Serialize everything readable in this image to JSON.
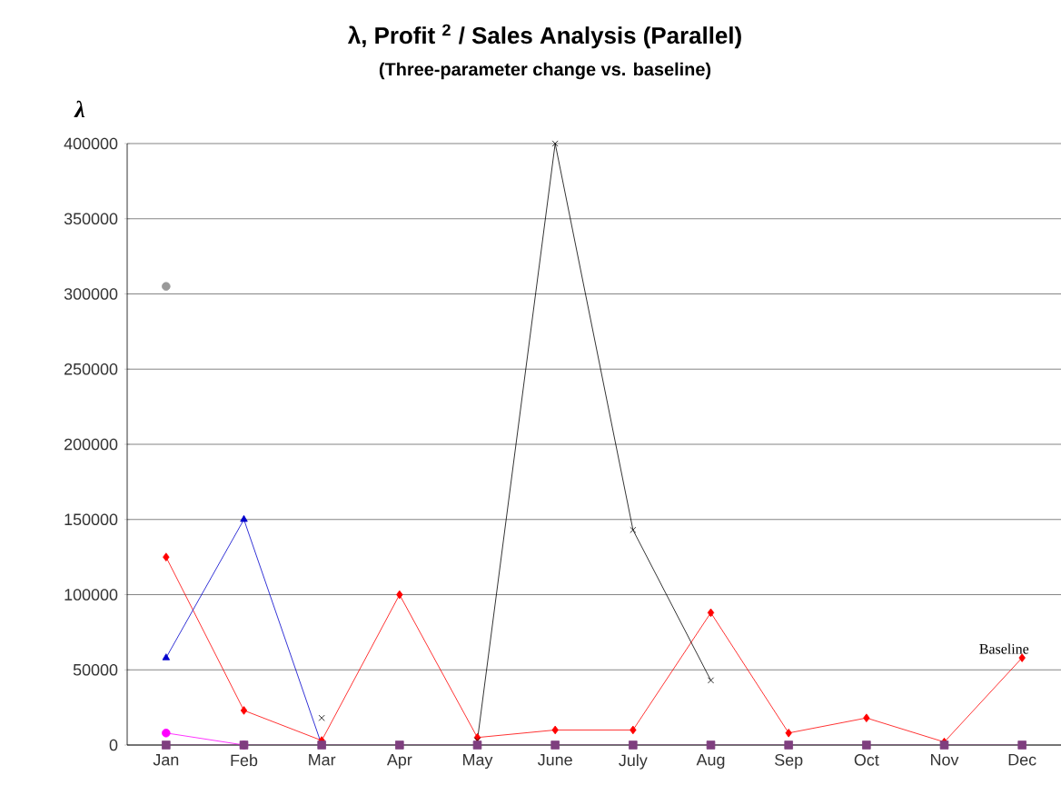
{
  "chart_data": {
    "type": "line",
    "title": "λ, Profit $^{2}$ / Sales Analysis (Parallel)",
    "subtitle": "(Three-parameter change vs. baseline)",
    "ylabel": "λ",
    "categories": [
      "Jan",
      "Feb",
      "Mar",
      "Apr",
      "May",
      "June",
      "July",
      "Aug",
      "Sep",
      "Oct",
      "Nov",
      "Dec"
    ],
    "ylim": [
      0,
      400000
    ],
    "yticks": [
      0,
      50000,
      100000,
      150000,
      200000,
      250000,
      300000,
      350000,
      400000
    ],
    "grid": "y",
    "series": [
      {
        "name": "Baseline",
        "color": "#ff0000",
        "marker": "diamond",
        "values": [
          125000,
          23000,
          3000,
          100000,
          5000,
          10000,
          10000,
          88000,
          8000,
          18000,
          2000,
          58000
        ]
      },
      {
        "color": "#0000cc",
        "marker": "triangle",
        "values": [
          58000,
          150000,
          0,
          null,
          null,
          null,
          null,
          null,
          null,
          null,
          null,
          null
        ]
      },
      {
        "color": "#000000",
        "marker": "cross",
        "values": [
          null,
          null,
          18000,
          null,
          3000,
          400000,
          143000,
          43000,
          null,
          null,
          null,
          null
        ]
      },
      {
        "color": "#ff00ff",
        "marker": "circle",
        "values": [
          8000,
          0,
          null,
          null,
          null,
          null,
          null,
          null,
          null,
          null,
          null,
          null
        ]
      },
      {
        "color": "#999999",
        "marker": "circle",
        "values": [
          305000,
          null,
          null,
          null,
          null,
          null,
          null,
          null,
          null,
          null,
          null,
          null
        ]
      },
      {
        "color": "#7f3f7f",
        "marker": "square",
        "values": [
          0,
          0,
          0,
          0,
          0,
          0,
          0,
          0,
          0,
          0,
          0,
          0
        ]
      }
    ]
  }
}
